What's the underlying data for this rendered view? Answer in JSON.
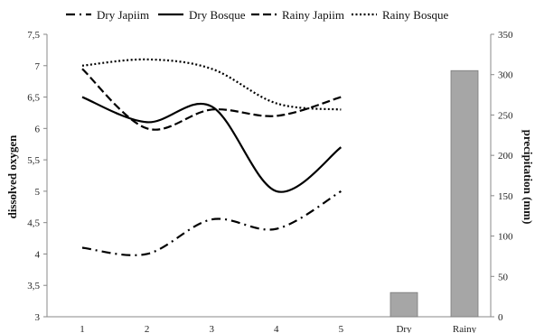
{
  "chart_data": {
    "type": "line",
    "x": [
      1,
      2,
      3,
      4,
      5
    ],
    "series": [
      {
        "name": "Dry Japiim",
        "values": [
          4.1,
          4.0,
          4.55,
          4.4,
          5.0
        ],
        "dash": "dashdot"
      },
      {
        "name": "Dry Bosque",
        "values": [
          6.5,
          6.1,
          6.35,
          5.0,
          5.7
        ],
        "dash": "solid"
      },
      {
        "name": "Rainy Japiim",
        "values": [
          6.95,
          6.0,
          6.3,
          6.2,
          6.5
        ],
        "dash": "dashed"
      },
      {
        "name": "Rainy Bosque",
        "values": [
          7.0,
          7.1,
          6.95,
          6.4,
          6.3
        ],
        "dash": "dotted"
      }
    ],
    "bars": {
      "categories": [
        "Dry",
        "Rainy"
      ],
      "values": [
        30,
        305
      ],
      "color": "#a6a6a6"
    },
    "ylabel": "dissolved oxygen",
    "y2label": "precipitation (mm)",
    "ylim": [
      3,
      7.5
    ],
    "y2lim": [
      0,
      350
    ],
    "yticks": [
      "3",
      "3,5",
      "4",
      "4,5",
      "5",
      "5,5",
      "6",
      "6,5",
      "7",
      "7,5"
    ],
    "y2ticks": [
      "0",
      "50",
      "100",
      "150",
      "200",
      "250",
      "300",
      "350"
    ],
    "xticks": [
      "1",
      "2",
      "3",
      "4",
      "5"
    ],
    "grid": false,
    "legend_position": "top"
  }
}
